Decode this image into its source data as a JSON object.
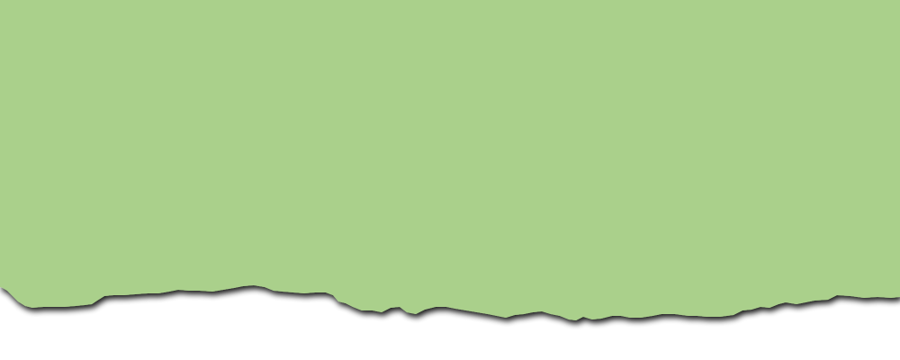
{
  "colors": {
    "paper": "#aad08b",
    "shadow": "#000000",
    "background": "#ffffff"
  }
}
